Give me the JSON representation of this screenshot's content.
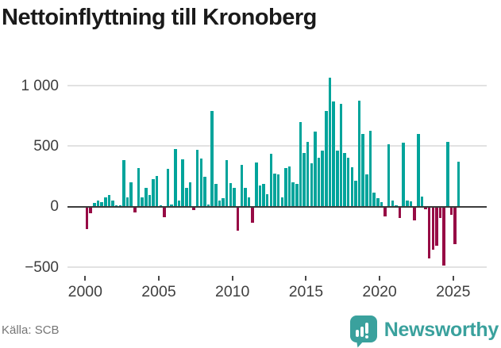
{
  "header": {
    "title": "Nettoinflyttning till Kronoberg"
  },
  "footer": {
    "source": "Källa: SCB",
    "brand": "Newsworthy",
    "brand_icon": "bar-chart-badge-icon"
  },
  "colors": {
    "positive_bar": "#00a49b",
    "negative_bar": "#970b45",
    "brand_teal": "#3aa19d",
    "grid": "#e2e2e2",
    "axis_text": "#3d3d3d",
    "zero_line": "#3b3b3b",
    "title_text": "#1a1a1a",
    "source_text": "#767676"
  },
  "chart_data": {
    "type": "bar",
    "title": "Nettoinflyttning till Kronoberg",
    "xlabel": "",
    "ylabel": "",
    "x_ticks": [
      2000,
      2005,
      2010,
      2015,
      2020,
      2025
    ],
    "y_ticks": [
      1000,
      500,
      0,
      -500
    ],
    "y_tick_labels": [
      "1 000",
      "500",
      "0",
      "−500"
    ],
    "ylim": [
      -560,
      1100
    ],
    "grid": true,
    "legend": false,
    "start_year": 2000,
    "frequency": "quarterly",
    "series": [
      [
        "2000 Q1",
        -175
      ],
      [
        "2000 Q2",
        -45
      ],
      [
        "2000 Q3",
        25
      ],
      [
        "2000 Q4",
        45
      ],
      [
        "2001 Q1",
        35
      ],
      [
        "2001 Q2",
        75
      ],
      [
        "2001 Q3",
        95
      ],
      [
        "2001 Q4",
        45
      ],
      [
        "2002 Q1",
        10
      ],
      [
        "2002 Q2",
        5
      ],
      [
        "2002 Q3",
        380
      ],
      [
        "2002 Q4",
        75
      ],
      [
        "2003 Q1",
        200
      ],
      [
        "2003 Q2",
        -35
      ],
      [
        "2003 Q3",
        315
      ],
      [
        "2003 Q4",
        75
      ],
      [
        "2004 Q1",
        155
      ],
      [
        "2004 Q2",
        90
      ],
      [
        "2004 Q3",
        225
      ],
      [
        "2004 Q4",
        250
      ],
      [
        "2005 Q1",
        10
      ],
      [
        "2005 Q2",
        -80
      ],
      [
        "2005 Q3",
        310
      ],
      [
        "2005 Q4",
        15
      ],
      [
        "2006 Q1",
        470
      ],
      [
        "2006 Q2",
        50
      ],
      [
        "2006 Q3",
        390
      ],
      [
        "2006 Q4",
        155
      ],
      [
        "2007 Q1",
        200
      ],
      [
        "2007 Q2",
        -20
      ],
      [
        "2007 Q3",
        465
      ],
      [
        "2007 Q4",
        395
      ],
      [
        "2008 Q1",
        245
      ],
      [
        "2008 Q2",
        15
      ],
      [
        "2008 Q3",
        790
      ],
      [
        "2008 Q4",
        185
      ],
      [
        "2009 Q1",
        45
      ],
      [
        "2009 Q2",
        70
      ],
      [
        "2009 Q3",
        380
      ],
      [
        "2009 Q4",
        190
      ],
      [
        "2010 Q1",
        155
      ],
      [
        "2010 Q2",
        -190
      ],
      [
        "2010 Q3",
        340
      ],
      [
        "2010 Q4",
        155
      ],
      [
        "2011 Q1",
        75
      ],
      [
        "2011 Q2",
        -120
      ],
      [
        "2011 Q3",
        360
      ],
      [
        "2011 Q4",
        170
      ],
      [
        "2012 Q1",
        185
      ],
      [
        "2012 Q2",
        100
      ],
      [
        "2012 Q3",
        435
      ],
      [
        "2012 Q4",
        270
      ],
      [
        "2013 Q1",
        265
      ],
      [
        "2013 Q2",
        75
      ],
      [
        "2013 Q3",
        315
      ],
      [
        "2013 Q4",
        330
      ],
      [
        "2014 Q1",
        195
      ],
      [
        "2014 Q2",
        185
      ],
      [
        "2014 Q3",
        695
      ],
      [
        "2014 Q4",
        440
      ],
      [
        "2015 Q1",
        530
      ],
      [
        "2015 Q2",
        355
      ],
      [
        "2015 Q3",
        620
      ],
      [
        "2015 Q4",
        400
      ],
      [
        "2016 Q1",
        460
      ],
      [
        "2016 Q2",
        790
      ],
      [
        "2016 Q3",
        1060
      ],
      [
        "2016 Q4",
        865
      ],
      [
        "2017 Q1",
        460
      ],
      [
        "2017 Q2",
        845
      ],
      [
        "2017 Q3",
        440
      ],
      [
        "2017 Q4",
        400
      ],
      [
        "2018 Q1",
        320
      ],
      [
        "2018 Q2",
        210
      ],
      [
        "2018 Q3",
        870
      ],
      [
        "2018 Q4",
        595
      ],
      [
        "2019 Q1",
        265
      ],
      [
        "2019 Q2",
        625
      ],
      [
        "2019 Q3",
        115
      ],
      [
        "2019 Q4",
        70
      ],
      [
        "2020 Q1",
        35
      ],
      [
        "2020 Q2",
        -70
      ],
      [
        "2020 Q3",
        510
      ],
      [
        "2020 Q4",
        50
      ],
      [
        "2021 Q1",
        10
      ],
      [
        "2021 Q2",
        -85
      ],
      [
        "2021 Q3",
        525
      ],
      [
        "2021 Q4",
        45
      ],
      [
        "2022 Q1",
        40
      ],
      [
        "2022 Q2",
        -105
      ],
      [
        "2022 Q3",
        595
      ],
      [
        "2022 Q4",
        80
      ],
      [
        "2023 Q1",
        -15
      ],
      [
        "2023 Q2",
        -415
      ],
      [
        "2023 Q3",
        -345
      ],
      [
        "2023 Q4",
        -310
      ],
      [
        "2024 Q1",
        -85
      ],
      [
        "2024 Q2",
        -480
      ],
      [
        "2024 Q3",
        530
      ],
      [
        "2024 Q4",
        -55
      ],
      [
        "2025 Q1",
        -300
      ],
      [
        "2025 Q2",
        365
      ]
    ]
  }
}
